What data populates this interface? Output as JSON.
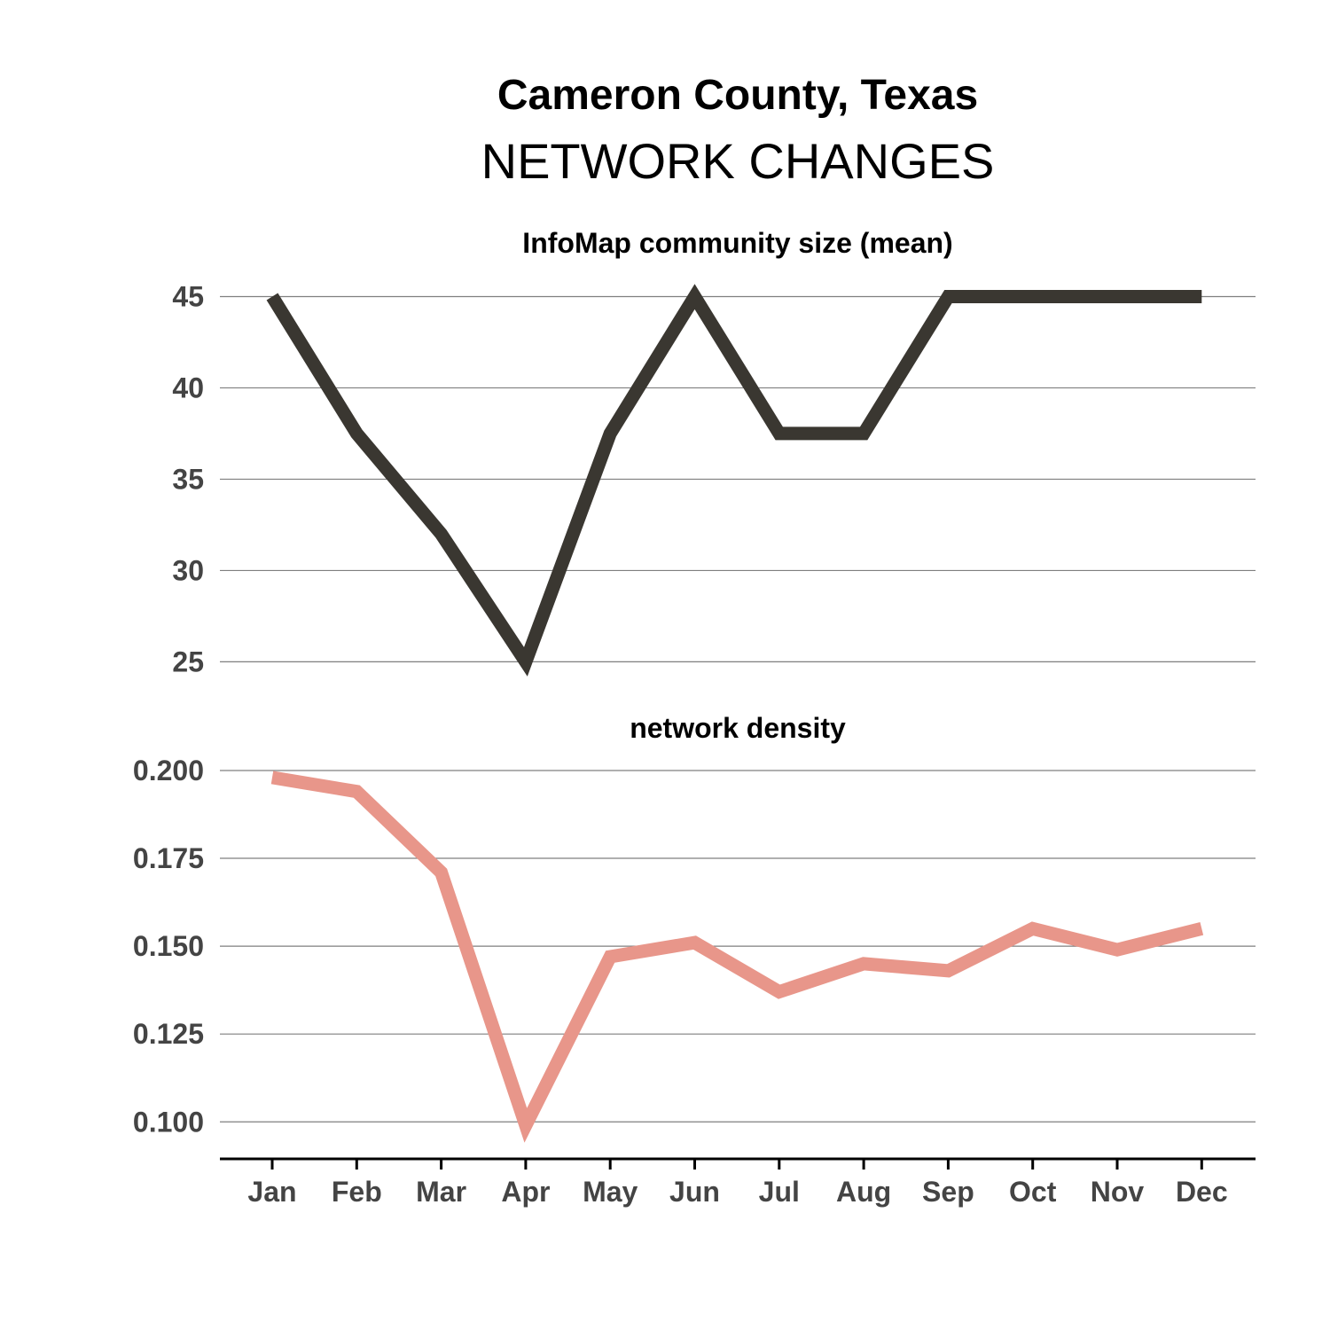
{
  "title": "Cameron County, Texas",
  "subtitle": "NETWORK CHANGES",
  "chart_data": [
    {
      "type": "line",
      "title": "InfoMap community size (mean)",
      "categories": [
        "Jan",
        "Feb",
        "Mar",
        "Apr",
        "May",
        "Jun",
        "Jul",
        "Aug",
        "Sep",
        "Oct",
        "Nov",
        "Dec"
      ],
      "series": [
        {
          "values": [
            45,
            37.5,
            32,
            25,
            37.5,
            45,
            37.5,
            37.5,
            45,
            45,
            45,
            45
          ],
          "color": "#3a3731"
        }
      ],
      "yticks": [
        25,
        30,
        35,
        40,
        45
      ],
      "ytick_labels": [
        "25",
        "30",
        "35",
        "40",
        "45"
      ],
      "ylim": [
        24,
        45.8
      ],
      "grid": true
    },
    {
      "type": "line",
      "title": "network density",
      "categories": [
        "Jan",
        "Feb",
        "Mar",
        "Apr",
        "May",
        "Jun",
        "Jul",
        "Aug",
        "Sep",
        "Oct",
        "Nov",
        "Dec"
      ],
      "series": [
        {
          "values": [
            0.198,
            0.194,
            0.171,
            0.099,
            0.147,
            0.151,
            0.137,
            0.145,
            0.143,
            0.155,
            0.149,
            0.155
          ],
          "color": "#e8968a"
        }
      ],
      "yticks": [
        0.1,
        0.125,
        0.15,
        0.175,
        0.2
      ],
      "ytick_labels": [
        "0.100",
        "0.125",
        "0.150",
        "0.175",
        "0.200"
      ],
      "ylim": [
        0.093,
        0.201
      ],
      "grid": true
    }
  ]
}
